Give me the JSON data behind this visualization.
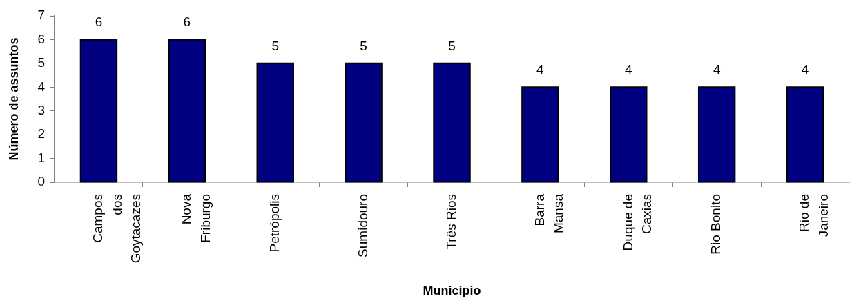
{
  "chart_data": {
    "type": "bar",
    "xlabel": "Município",
    "ylabel": "Número de assuntos",
    "categories": [
      "Campos dos Goytacazes",
      "Nova Friburgo",
      "Petrópolis",
      "Sumidouro",
      "Três Rios",
      "Barra Mansa",
      "Duque de Caxias",
      "Rio Bonito",
      "Rio de Janeiro"
    ],
    "values": [
      6,
      6,
      5,
      5,
      5,
      4,
      4,
      4,
      4
    ],
    "color": "#000080",
    "ylim": [
      0,
      7
    ],
    "yticks": [
      0,
      1,
      2,
      3,
      4,
      5,
      6,
      7
    ],
    "grid": false,
    "legend": false,
    "data_labels": true
  }
}
